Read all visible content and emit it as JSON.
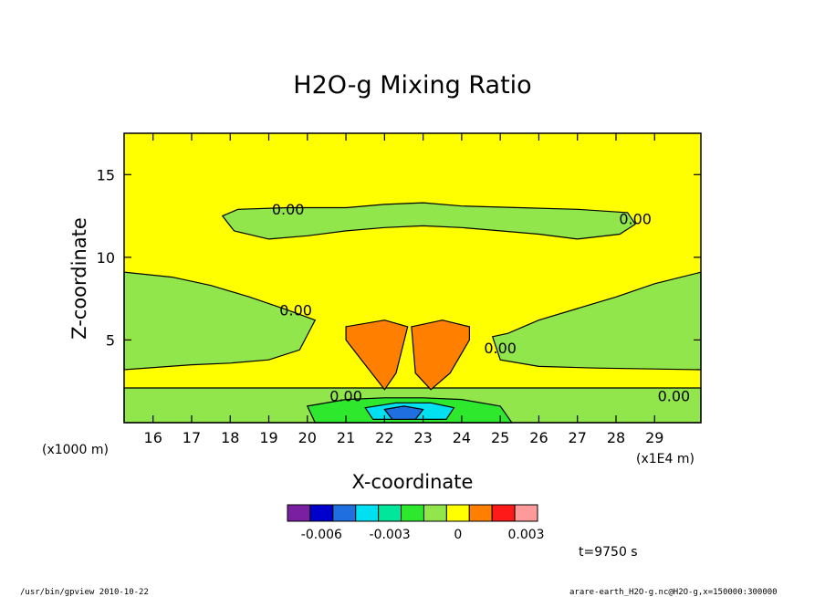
{
  "chart_data": {
    "type": "heatmap",
    "title": "H2O-g Mixing Ratio",
    "xlabel": "X-coordinate",
    "ylabel": "Z-coordinate",
    "x_unit_note": "(x1E4 m)",
    "y_unit_note": "(x1000 m)",
    "xlim": [
      15.25,
      30.2
    ],
    "ylim": [
      0,
      17.5
    ],
    "x_ticks": [
      16,
      17,
      18,
      19,
      20,
      21,
      22,
      23,
      24,
      25,
      26,
      27,
      28,
      29
    ],
    "y_ticks": [
      5,
      10,
      15
    ],
    "contour_label": "0.00",
    "colorbar": {
      "colors": [
        "#7a1fa2",
        "#0000cc",
        "#1f6fe0",
        "#00e0f0",
        "#00e69a",
        "#2ee82e",
        "#90e64a",
        "#ffff00",
        "#ff8000",
        "#ff1a1a",
        "#ff9a9a"
      ],
      "labels": [
        "-0.006",
        "-0.003",
        "0",
        "0.003"
      ],
      "label_positions": [
        -0.006,
        -0.003,
        0,
        0.003
      ],
      "min": -0.0075,
      "max": 0.0035
    },
    "regions": [
      {
        "level": "green",
        "color": "#90e64a",
        "desc": "lower moist layer left",
        "x": [
          15.25,
          15.25,
          16.5,
          17.5,
          18.5,
          19.5,
          20.2,
          20.0,
          19.8,
          19.0,
          18.0,
          17.0,
          15.25
        ],
        "z": [
          3.2,
          9.1,
          8.8,
          8.3,
          7.6,
          6.8,
          6.2,
          5.3,
          4.4,
          3.8,
          3.6,
          3.5,
          3.2
        ]
      },
      {
        "level": "green",
        "color": "#90e64a",
        "desc": "lower moist layer right",
        "x": [
          30.2,
          30.2,
          29.0,
          28.0,
          27.0,
          26.0,
          25.2,
          24.8,
          25.0,
          26.0,
          27.5,
          30.2
        ],
        "z": [
          3.2,
          9.1,
          8.4,
          7.6,
          6.9,
          6.2,
          5.4,
          5.2,
          3.8,
          3.4,
          3.3,
          3.2
        ]
      },
      {
        "level": "green",
        "color": "#90e64a",
        "desc": "upper band",
        "x": [
          17.8,
          18.2,
          19.5,
          21.0,
          22.0,
          23.0,
          24.0,
          25.5,
          27.0,
          28.3,
          28.5,
          28.1,
          27.0,
          26.0,
          25.0,
          24.0,
          23.0,
          22.0,
          21.0,
          20.0,
          19.0,
          18.1
        ],
        "z": [
          12.5,
          12.9,
          13.0,
          13.0,
          13.2,
          13.3,
          13.1,
          13.0,
          12.9,
          12.7,
          12.0,
          11.4,
          11.1,
          11.4,
          11.6,
          11.8,
          11.9,
          11.8,
          11.6,
          11.3,
          11.1,
          11.6
        ]
      },
      {
        "level": "green",
        "color": "#90e64a",
        "desc": "surface layer",
        "x": [
          15.25,
          30.2,
          30.2,
          15.25
        ],
        "z": [
          2.1,
          2.1,
          0,
          0
        ]
      },
      {
        "level": "green",
        "color": "#2ee82e",
        "desc": "near-surface core",
        "x": [
          20.0,
          21.0,
          22.0,
          23.0,
          24.0,
          25.0,
          25.3,
          20.2
        ],
        "z": [
          1.0,
          1.4,
          1.5,
          1.5,
          1.4,
          1.0,
          0,
          0
        ]
      },
      {
        "level": "cyan",
        "color": "#00e0f0",
        "desc": "near-surface minimum",
        "x": [
          21.5,
          22.3,
          23.2,
          23.8,
          23.6,
          21.7
        ],
        "z": [
          0.9,
          1.2,
          1.2,
          0.9,
          0.2,
          0.2
        ]
      },
      {
        "level": "blue",
        "color": "#1f6fe0",
        "desc": "strong minimum",
        "x": [
          22.0,
          22.5,
          23.0,
          22.8,
          22.2
        ],
        "z": [
          0.8,
          1.0,
          0.8,
          0.2,
          0.2
        ]
      },
      {
        "level": "orange",
        "color": "#ff8000",
        "desc": "left plume",
        "x": [
          21.0,
          22.0,
          22.6,
          22.3,
          22.0,
          21.5,
          21.0
        ],
        "z": [
          5.8,
          6.2,
          5.8,
          3.0,
          2.0,
          3.5,
          5.0
        ]
      },
      {
        "level": "orange",
        "color": "#ff8000",
        "desc": "right plume",
        "x": [
          22.7,
          23.5,
          24.2,
          24.2,
          23.7,
          23.2,
          22.8
        ],
        "z": [
          5.8,
          6.2,
          5.8,
          5.0,
          3.0,
          2.0,
          3.0
        ]
      }
    ],
    "grid": false
  },
  "time_label": "t=9750 s",
  "footer": {
    "left": "/usr/bin/gpview   2010-10-22",
    "right": "arare-earth_H2O-g.nc@H2O-g,x=150000:300000"
  }
}
